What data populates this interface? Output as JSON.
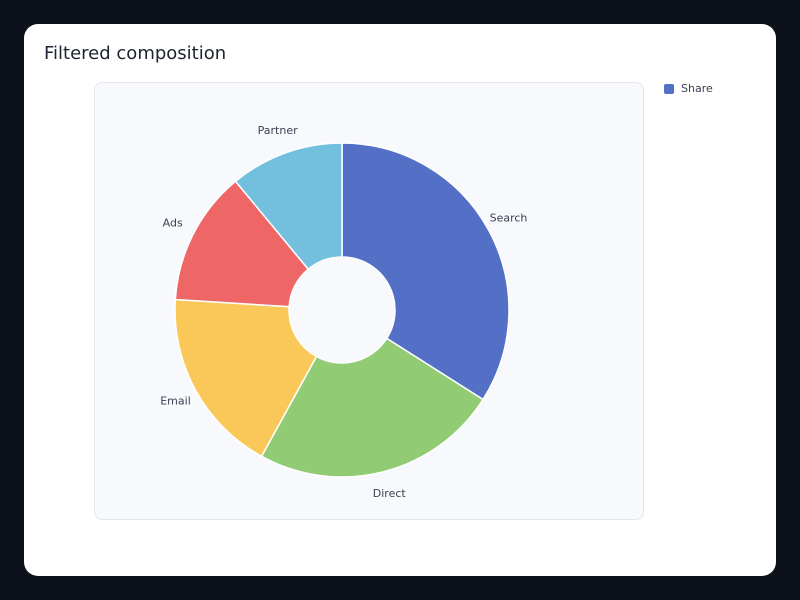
{
  "chart_data": {
    "type": "pie",
    "title": "Filtered composition",
    "hole": true,
    "legend": "top-right",
    "series": [
      {
        "name": "Share",
        "color": "#5470c6"
      }
    ],
    "categories": [
      "Search",
      "Direct",
      "Email",
      "Ads",
      "Partner"
    ],
    "values": [
      34,
      24,
      18,
      13,
      11
    ],
    "colors": [
      "#5470c6",
      "#91cc75",
      "#fac858",
      "#ee6666",
      "#73c0de"
    ]
  }
}
